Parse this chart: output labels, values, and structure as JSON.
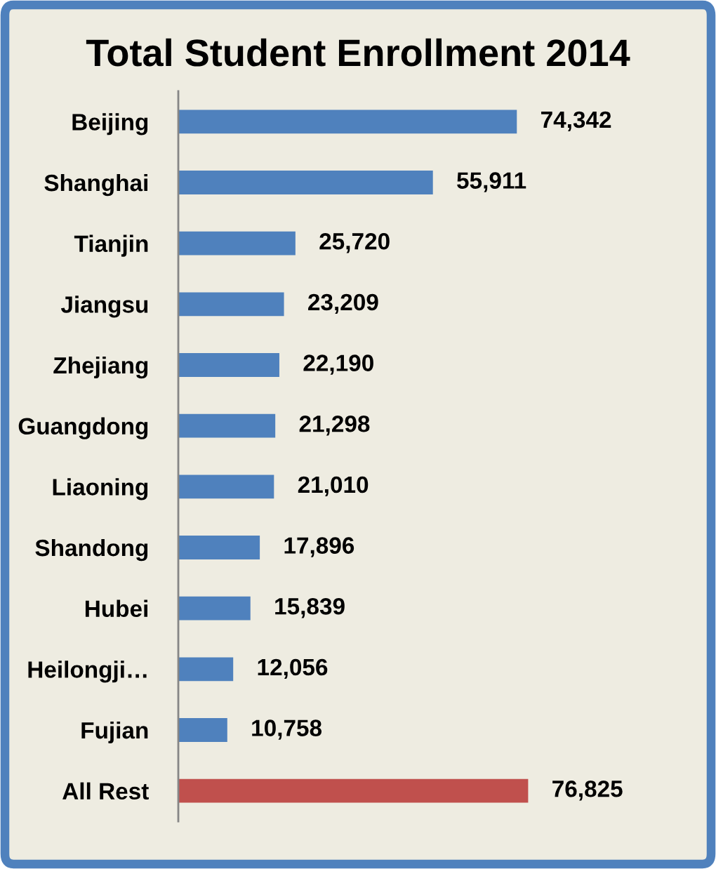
{
  "chart_data": {
    "type": "bar",
    "orientation": "horizontal",
    "title": "Total Student Enrollment 2014",
    "categories": [
      "Beijing",
      "Shanghai",
      "Tianjin",
      "Jiangsu",
      "Zhejiang",
      "Guangdong",
      "Liaoning",
      "Shandong",
      "Hubei",
      "Heilongji…",
      "Fujian",
      "All Rest"
    ],
    "values": [
      74342,
      55911,
      25720,
      23209,
      22190,
      21298,
      21010,
      17896,
      15839,
      12056,
      10758,
      76825
    ],
    "value_labels": [
      "74,342",
      "55,911",
      "25,720",
      "23,209",
      "22,190",
      "21,298",
      "21,010",
      "17,896",
      "15,839",
      "12,056",
      "10,758",
      "76,825"
    ],
    "colors": [
      "#4f81bd",
      "#4f81bd",
      "#4f81bd",
      "#4f81bd",
      "#4f81bd",
      "#4f81bd",
      "#4f81bd",
      "#4f81bd",
      "#4f81bd",
      "#4f81bd",
      "#4f81bd",
      "#c0504d"
    ],
    "tick_labels": "y"
  }
}
